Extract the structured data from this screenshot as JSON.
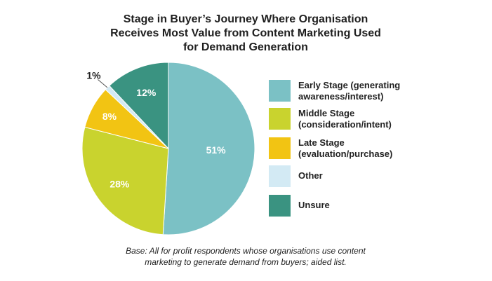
{
  "chart_data": {
    "type": "pie",
    "title": [
      "Stage in Buyer’s Journey Where Organisation",
      "Receives Most Value from Content Marketing Used",
      "for Demand Generation"
    ],
    "slices": [
      {
        "label": "Early Stage (generating awareness/interest)",
        "legend_lines": "Early Stage (generating\nawareness/interest)",
        "value": 51,
        "value_label": "51%",
        "color": "#7bc1c5"
      },
      {
        "label": "Middle Stage (consideration/intent)",
        "legend_lines": "Middle Stage\n(consideration/intent)",
        "value": 28,
        "value_label": "28%",
        "color": "#c9d32e"
      },
      {
        "label": "Late Stage (evaluation/purchase)",
        "legend_lines": "Late Stage\n(evaluation/purchase)",
        "value": 8,
        "value_label": "8%",
        "color": "#f2c413"
      },
      {
        "label": "Other",
        "legend_lines": "Other",
        "value": 1,
        "value_label": "1%",
        "color": "#d3eaf4"
      },
      {
        "label": "Unsure",
        "legend_lines": "Unsure",
        "value": 12,
        "value_label": "12%",
        "color": "#3a9381"
      }
    ],
    "legend_position": "right",
    "note": [
      "Base: All for profit respondents whose organisations use content",
      "marketing to generate demand from buyers; aided list."
    ]
  }
}
